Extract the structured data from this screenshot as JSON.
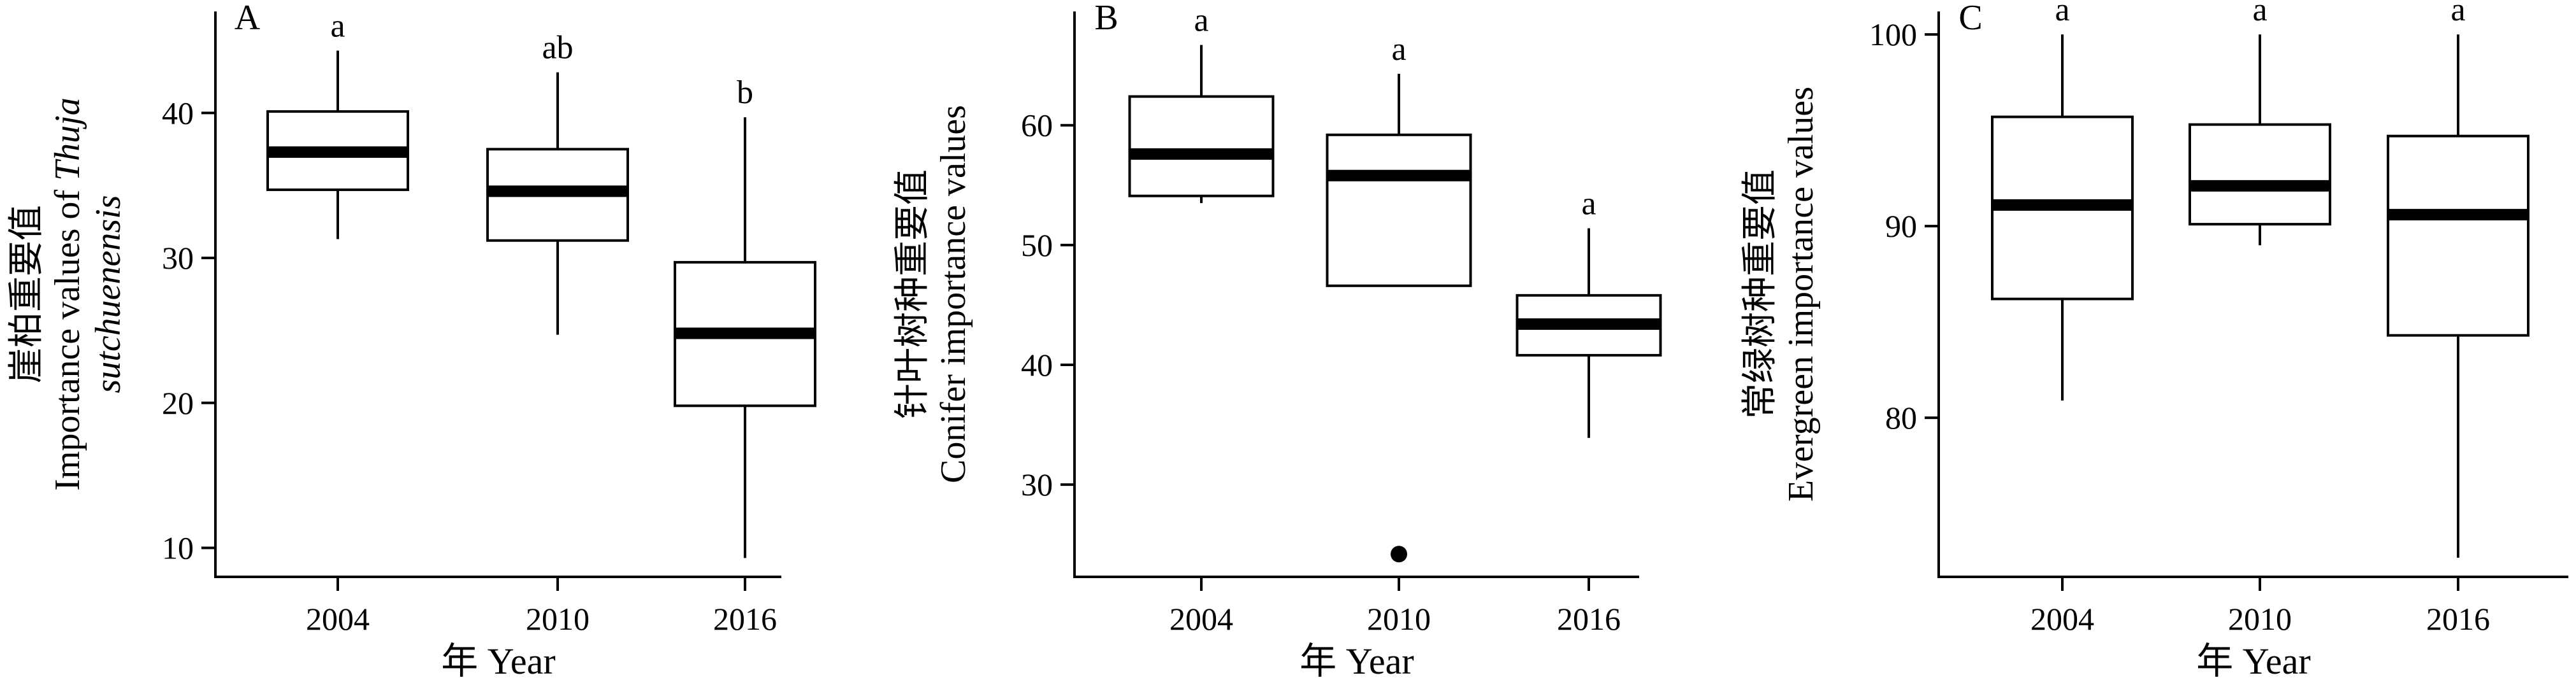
{
  "chart_data": [
    {
      "type": "box",
      "panel": "A",
      "categories": [
        "2004",
        "2010",
        "2016"
      ],
      "xlabel": "年 Year",
      "ylabel_cn": "崖柏重要值",
      "ylabel_en": "Importance values of",
      "ylabel_species": "Thuja sutchuenensis",
      "yticks": [
        10,
        20,
        30,
        40
      ],
      "ylim": [
        8,
        47
      ],
      "boxes": [
        {
          "category": "2004",
          "min": 31.3,
          "q1": 34.7,
          "median": 37.3,
          "q3": 40.1,
          "max": 44.3,
          "letter": "a"
        },
        {
          "category": "2010",
          "min": 24.7,
          "q1": 31.2,
          "median": 34.6,
          "q3": 37.5,
          "max": 42.8,
          "letter": "ab"
        },
        {
          "category": "2016",
          "min": 9.3,
          "q1": 19.8,
          "median": 24.8,
          "q3": 29.7,
          "max": 39.7,
          "letter": "b"
        }
      ]
    },
    {
      "type": "box",
      "panel": "B",
      "categories": [
        "2004",
        "2010",
        "2016"
      ],
      "xlabel": "年 Year",
      "ylabel_cn": "针叶树种重要值",
      "ylabel_en": "Conifer importance values",
      "yticks": [
        30,
        40,
        50,
        60
      ],
      "ylim": [
        22.3,
        69.5
      ],
      "boxes": [
        {
          "category": "2004",
          "min": 53.5,
          "q1": 54.1,
          "median": 57.6,
          "q3": 62.4,
          "max": 66.7,
          "letter": "a"
        },
        {
          "category": "2010",
          "min": 46.6,
          "q1": 46.6,
          "median": 55.8,
          "q3": 59.2,
          "max": 64.3,
          "letter": "a",
          "outliers": [
            24.2
          ]
        },
        {
          "category": "2016",
          "min": 33.9,
          "q1": 40.8,
          "median": 43.4,
          "q3": 45.8,
          "max": 51.4,
          "letter": "a"
        }
      ]
    },
    {
      "type": "box",
      "panel": "C",
      "categories": [
        "2004",
        "2010",
        "2016"
      ],
      "xlabel": "年 Year",
      "ylabel_cn": "常绿树种重要值",
      "ylabel_en": "Evergreen importance values",
      "yticks": [
        80,
        90,
        100
      ],
      "ylim": [
        71.7,
        101.2
      ],
      "boxes": [
        {
          "category": "2004",
          "min": 80.9,
          "q1": 86.2,
          "median": 91.1,
          "q3": 95.7,
          "max": 100.0,
          "letter": "a"
        },
        {
          "category": "2010",
          "min": 89.0,
          "q1": 90.1,
          "median": 92.1,
          "q3": 95.3,
          "max": 100.0,
          "letter": "a"
        },
        {
          "category": "2016",
          "min": 72.7,
          "q1": 84.3,
          "median": 90.6,
          "q3": 94.7,
          "max": 100.0,
          "letter": "a"
        }
      ]
    }
  ]
}
